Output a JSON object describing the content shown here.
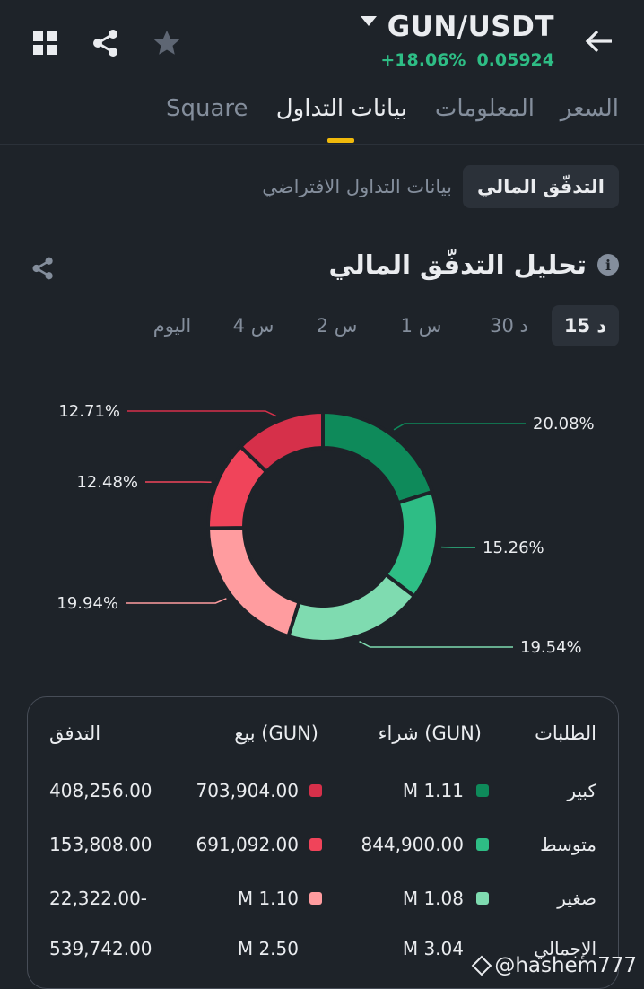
{
  "header": {
    "pair": "GUN/USDT",
    "change": "+18.06%",
    "price": "0.05924",
    "icons": [
      "grid-icon",
      "share-icon",
      "star-icon",
      "back-arrow-icon"
    ]
  },
  "tabs": [
    {
      "label": "السعر",
      "active": false
    },
    {
      "label": "المعلومات",
      "active": false
    },
    {
      "label": "بيانات التداول",
      "active": true
    },
    {
      "label": "Square",
      "active": false
    }
  ],
  "segment": {
    "active": "التدفّق المالي",
    "other": "بيانات التداول الافتراضي"
  },
  "section": {
    "title": "تحليل التدفّق المالي"
  },
  "time_filters": [
    {
      "label": "15 د",
      "active": true
    },
    {
      "label": "30 د",
      "active": false
    },
    {
      "label": "1 س",
      "active": false
    },
    {
      "label": "2 س",
      "active": false
    },
    {
      "label": "4 س",
      "active": false
    },
    {
      "label": "اليوم",
      "active": false
    }
  ],
  "chart_data": {
    "type": "pie",
    "categories": [
      "شراء كبير",
      "شراء متوسط",
      "شراء صغير",
      "بيع صغير",
      "بيع متوسط",
      "بيع كبير"
    ],
    "values": [
      20.08,
      15.26,
      19.54,
      19.94,
      12.48,
      12.71
    ],
    "labels": [
      "20.08%",
      "15.26%",
      "19.54%",
      "19.94%",
      "12.48%",
      "12.71%"
    ],
    "colors": [
      "#0e8a5a",
      "#2ebd85",
      "#7fdbb0",
      "#ff9c9f",
      "#f0445a",
      "#d6304a"
    ],
    "donut": true
  },
  "table": {
    "headers": {
      "orders": "الطلبات",
      "buy": "شراء (GUN)",
      "sell": "بيع (GUN)",
      "flow": "التدفق"
    },
    "rows": [
      {
        "name": "كبير",
        "buy": "M 1.11",
        "sell": "703,904.00",
        "flow": "408,256.00",
        "buy_color": "#0e8a5a",
        "sell_color": "#d6304a"
      },
      {
        "name": "متوسط",
        "buy": "844,900.00",
        "sell": "691,092.00",
        "flow": "153,808.00",
        "buy_color": "#2ebd85",
        "sell_color": "#f0445a"
      },
      {
        "name": "صغير",
        "buy": "M 1.08",
        "sell": "M 1.10",
        "flow": "22,322.00-",
        "buy_color": "#7fdbb0",
        "sell_color": "#ff9c9f"
      },
      {
        "name": "الإجمالي",
        "buy": "M 3.04",
        "sell": "M 2.50",
        "flow": "539,742.00",
        "buy_color": "",
        "sell_color": ""
      }
    ]
  },
  "watermark": "@hashem777"
}
